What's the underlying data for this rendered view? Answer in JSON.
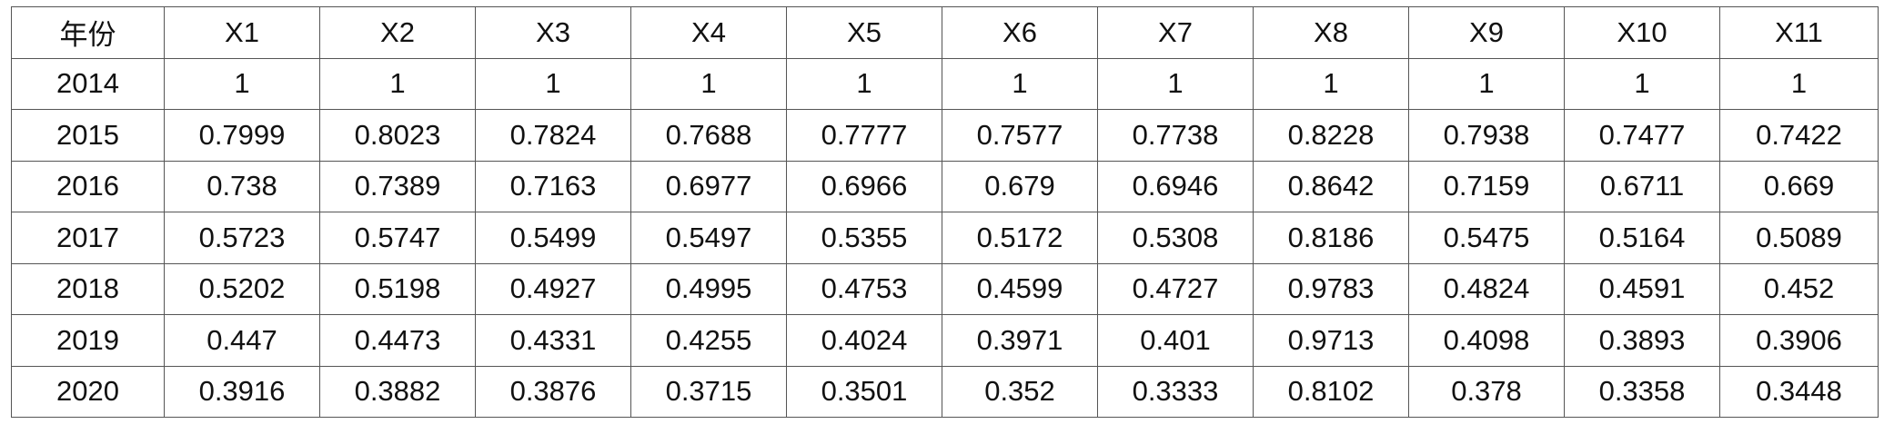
{
  "table": {
    "columns": [
      "年份",
      "X1",
      "X2",
      "X3",
      "X4",
      "X5",
      "X6",
      "X7",
      "X8",
      "X9",
      "X10",
      "X11"
    ],
    "rows": [
      [
        "2014",
        "1",
        "1",
        "1",
        "1",
        "1",
        "1",
        "1",
        "1",
        "1",
        "1",
        "1"
      ],
      [
        "2015",
        "0.7999",
        "0.8023",
        "0.7824",
        "0.7688",
        "0.7777",
        "0.7577",
        "0.7738",
        "0.8228",
        "0.7938",
        "0.7477",
        "0.7422"
      ],
      [
        "2016",
        "0.738",
        "0.7389",
        "0.7163",
        "0.6977",
        "0.6966",
        "0.679",
        "0.6946",
        "0.8642",
        "0.7159",
        "0.6711",
        "0.669"
      ],
      [
        "2017",
        "0.5723",
        "0.5747",
        "0.5499",
        "0.5497",
        "0.5355",
        "0.5172",
        "0.5308",
        "0.8186",
        "0.5475",
        "0.5164",
        "0.5089"
      ],
      [
        "2018",
        "0.5202",
        "0.5198",
        "0.4927",
        "0.4995",
        "0.4753",
        "0.4599",
        "0.4727",
        "0.9783",
        "0.4824",
        "0.4591",
        "0.452"
      ],
      [
        "2019",
        "0.447",
        "0.4473",
        "0.4331",
        "0.4255",
        "0.4024",
        "0.3971",
        "0.401",
        "0.9713",
        "0.4098",
        "0.3893",
        "0.3906"
      ],
      [
        "2020",
        "0.3916",
        "0.3882",
        "0.3876",
        "0.3715",
        "0.3501",
        "0.352",
        "0.3333",
        "0.8102",
        "0.378",
        "0.3358",
        "0.3448"
      ]
    ]
  }
}
